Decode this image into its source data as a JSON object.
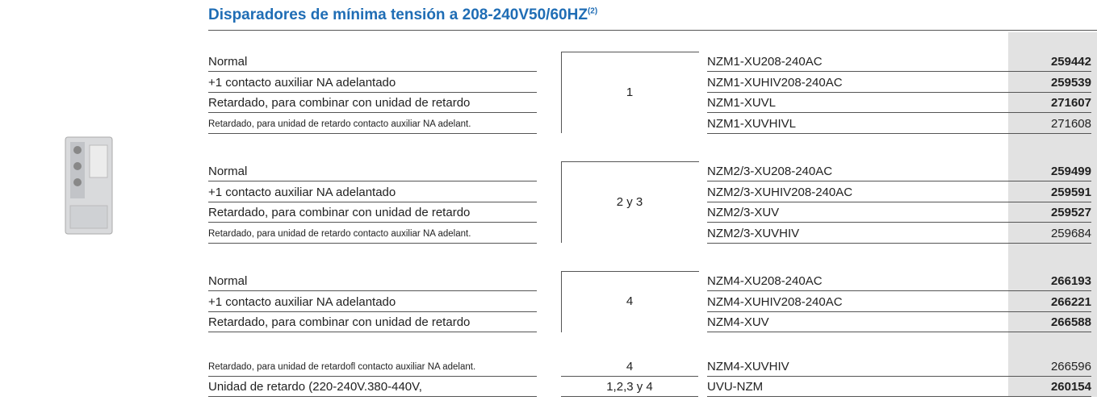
{
  "header": {
    "title": "Disparadores de mínima tensión a 208-240V50/60HZ",
    "note": "(2)"
  },
  "groups": [
    {
      "frame": "1",
      "bracket": true,
      "rows": [
        {
          "description": "Normal",
          "code": "NZM1-XU208-240AC",
          "ref": "259442",
          "bold": true,
          "small": false
        },
        {
          "description": "+1 contacto auxiliar NA adelantado",
          "code": "NZM1-XUHIV208-240AC",
          "ref": "259539",
          "bold": true,
          "small": false
        },
        {
          "description": "Retardado, para combinar con unidad de retardo",
          "code": "NZM1-XUVL",
          "ref": "271607",
          "bold": true,
          "small": false
        },
        {
          "description": "Retardado, para unidad de retardo contacto auxiliar NA adelant.",
          "code": "NZM1-XUVHIVL",
          "ref": "271608",
          "bold": false,
          "small": true
        }
      ]
    },
    {
      "frame": "2 y 3",
      "bracket": true,
      "rows": [
        {
          "description": "Normal",
          "code": "NZM2/3-XU208-240AC",
          "ref": "259499",
          "bold": true,
          "small": false
        },
        {
          "description": "+1 contacto auxiliar NA adelantado",
          "code": "NZM2/3-XUHIV208-240AC",
          "ref": "259591",
          "bold": true,
          "small": false
        },
        {
          "description": "Retardado, para combinar con unidad de retardo",
          "code": "NZM2/3-XUV",
          "ref": "259527",
          "bold": true,
          "small": false
        },
        {
          "description": "Retardado, para unidad de retardo contacto auxiliar NA adelant.",
          "code": "NZM2/3-XUVHIV",
          "ref": "259684",
          "bold": false,
          "small": true
        }
      ]
    },
    {
      "frame": "4",
      "bracket": true,
      "rows": [
        {
          "description": "Normal",
          "code": "NZM4-XU208-240AC",
          "ref": "266193",
          "bold": true,
          "small": false
        },
        {
          "description": "+1 contacto auxiliar NA adelantado",
          "code": "NZM4-XUHIV208-240AC",
          "ref": "266221",
          "bold": true,
          "small": false
        },
        {
          "description": "Retardado, para combinar con unidad de retardo",
          "code": "NZM4-XUV",
          "ref": "266588",
          "bold": true,
          "small": false
        }
      ]
    },
    {
      "frame": "4",
      "bracket": false,
      "rows": [
        {
          "description": "Retardado, para unidad de retardofl contacto auxiliar NA adelant.",
          "code": "NZM4-XUVHIV",
          "ref": "266596",
          "bold": false,
          "small": true
        }
      ]
    },
    {
      "frame": "1,2,3 y 4",
      "bracket": false,
      "rows": [
        {
          "description": "Unidad de retardo (220-240V.380-440V,",
          "code": "UVU-NZM",
          "ref": "260154",
          "bold": true,
          "small": false
        }
      ]
    }
  ]
}
